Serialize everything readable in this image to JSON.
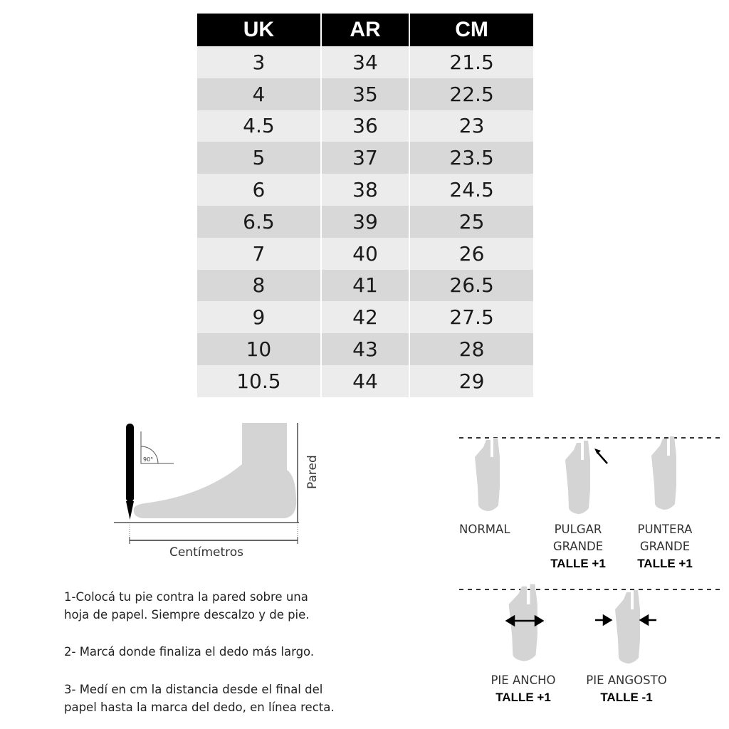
{
  "table": {
    "headers": [
      "UK",
      "AR",
      "CM"
    ],
    "rows": [
      [
        "3",
        "34",
        "21.5"
      ],
      [
        "4",
        "35",
        "22.5"
      ],
      [
        "4.5",
        "36",
        "23"
      ],
      [
        "5",
        "37",
        "23.5"
      ],
      [
        "6",
        "38",
        "24.5"
      ],
      [
        "6.5",
        "39",
        "25"
      ],
      [
        "7",
        "40",
        "26"
      ],
      [
        "8",
        "41",
        "26.5"
      ],
      [
        "9",
        "42",
        "27.5"
      ],
      [
        "10",
        "43",
        "28"
      ],
      [
        "10.5",
        "44",
        "29"
      ]
    ]
  },
  "diagram": {
    "angle": "90°",
    "wall": "Pared",
    "length": "Centímetros"
  },
  "foot_types": {
    "normal": {
      "label": "NORMAL"
    },
    "pulgar": {
      "line1": "PULGAR",
      "line2": "GRANDE",
      "size": "TALLE +1"
    },
    "puntera": {
      "line1": "PUNTERA",
      "line2": "GRANDE",
      "size": "TALLE +1"
    },
    "ancho": {
      "line1": "PIE ANCHO",
      "size": "TALLE +1"
    },
    "angosto": {
      "line1": "PIE ANGOSTO",
      "size": "TALLE -1"
    }
  },
  "instructions": {
    "step1_a": "1-Colocá tu pie contra la pared sobre una",
    "step1_b": "hoja de papel. Siempre descalzo y de pie.",
    "step2": "2- Marcá donde finaliza el dedo más largo.",
    "step3_a": "3- Medí en cm la distancia desde el final del",
    "step3_b": "papel hasta la marca del dedo, en línea recta."
  },
  "colors": {
    "header_bg": "#000000",
    "row_light": "#ececec",
    "row_dark": "#d9d8d9",
    "foot": "#d4d4d4"
  }
}
